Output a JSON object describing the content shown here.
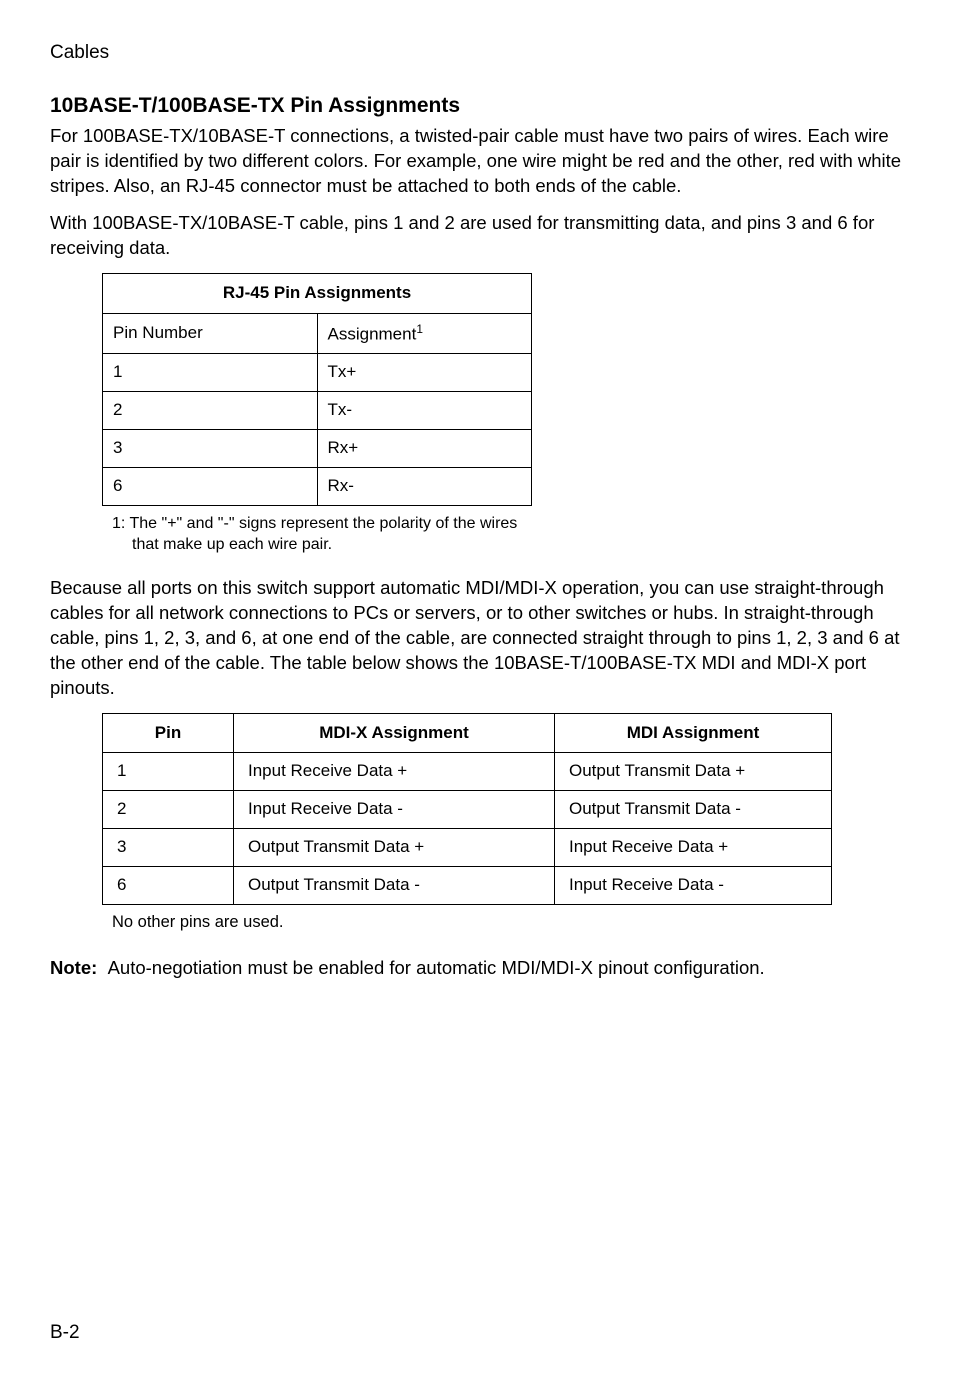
{
  "header": {
    "label": "Cables"
  },
  "section": {
    "title": "10BASE-T/100BASE-TX Pin Assignments",
    "para1": "For 100BASE-TX/10BASE-T connections, a twisted-pair cable must have two pairs of wires. Each wire pair is identified by two different colors. For example, one wire might be red and the other, red with white stripes. Also, an RJ-45 connector must be attached to both ends of the cable.",
    "para2": "With 100BASE-TX/10BASE-T cable, pins 1 and 2 are used for transmitting data, and pins 3 and 6 for receiving data."
  },
  "table1": {
    "title": "RJ-45 Pin Assignments",
    "header_pin": "Pin Number",
    "header_assign": "Assignment",
    "header_assign_sup": "1",
    "rows": [
      {
        "pin": "1",
        "assign": "Tx+"
      },
      {
        "pin": "2",
        "assign": "Tx-"
      },
      {
        "pin": "3",
        "assign": "Rx+"
      },
      {
        "pin": "6",
        "assign": "Rx-"
      }
    ],
    "footnote_line1": "1:  The \"+\" and \"-\" signs represent the polarity of the wires",
    "footnote_line2": "that make up each wire pair."
  },
  "para3": "Because all ports on this switch support automatic MDI/MDI-X operation, you can use straight-through cables for all network connections to PCs or servers, or to other switches or hubs. In straight-through cable, pins 1, 2, 3, and 6, at one end of the cable, are connected straight through to pins 1, 2, 3 and 6 at the other end of the cable. The table below shows the 10BASE-T/100BASE-TX MDI and MDI-X port pinouts.",
  "table2": {
    "headers": {
      "pin": "Pin",
      "mdix": "MDI-X Assignment",
      "mdi": "MDI Assignment"
    },
    "rows": [
      {
        "pin": "1",
        "mdix": "Input Receive Data +",
        "mdi": "Output Transmit Data +"
      },
      {
        "pin": "2",
        "mdix": "Input Receive Data -",
        "mdi": "Output Transmit Data -"
      },
      {
        "pin": "3",
        "mdix": "Output Transmit Data +",
        "mdi": "Input Receive Data +"
      },
      {
        "pin": "6",
        "mdix": "Output Transmit Data -",
        "mdi": "Input Receive Data -"
      }
    ],
    "footnote": "No other pins are used."
  },
  "note": {
    "label": "Note:",
    "text": "Auto-negotiation must be enabled for automatic MDI/MDI-X pinout configuration."
  },
  "footer": {
    "page": "B-2"
  }
}
